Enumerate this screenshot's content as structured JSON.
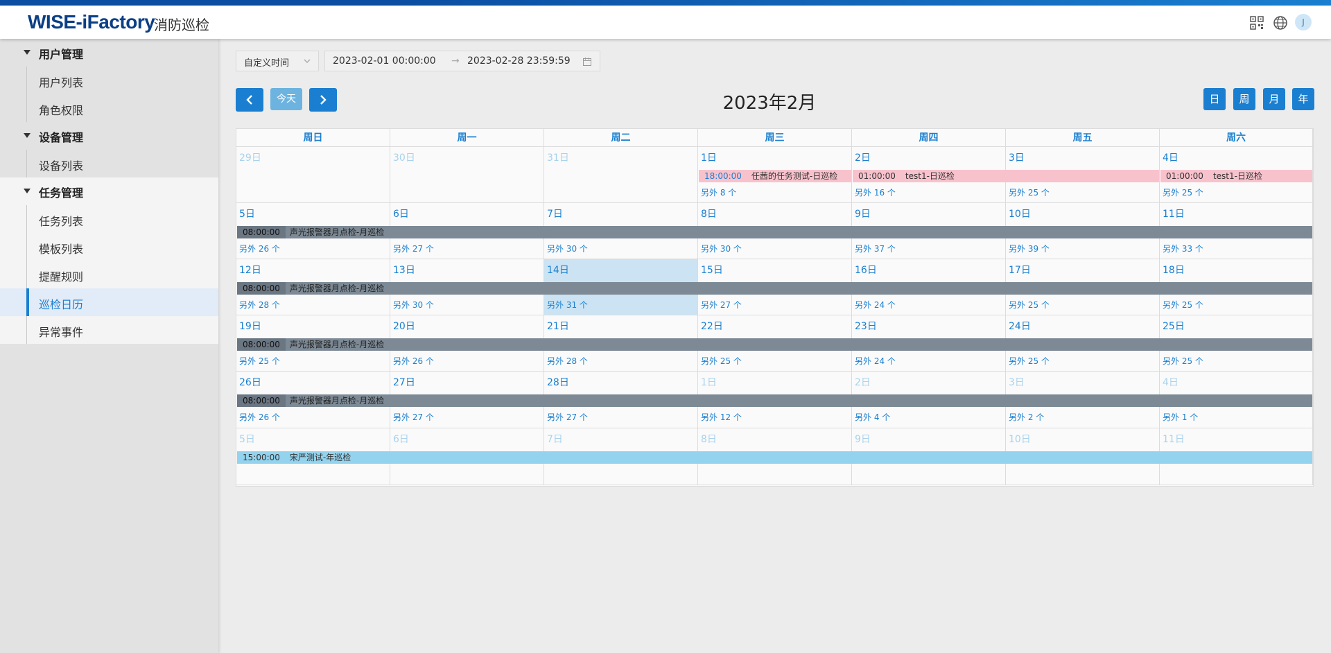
{
  "header": {
    "brand": "WISE-iFactory",
    "subtitle": "消防巡检",
    "avatar": "J",
    "icons": [
      "qrcode-icon",
      "globe-icon"
    ]
  },
  "sidebar": {
    "groups": [
      {
        "label": "用户管理",
        "items": [
          {
            "label": "用户列表"
          },
          {
            "label": "角色权限"
          }
        ]
      },
      {
        "label": "设备管理",
        "items": [
          {
            "label": "设备列表"
          }
        ]
      },
      {
        "label": "任务管理",
        "items": [
          {
            "label": "任务列表"
          },
          {
            "label": "模板列表"
          },
          {
            "label": "提醒规则"
          },
          {
            "label": "巡检日历",
            "active": true
          },
          {
            "label": "异常事件"
          }
        ]
      }
    ]
  },
  "filter": {
    "mode": "自定义时间",
    "start": "2023-02-01 00:00:00",
    "arrow": "→",
    "end": "2023-02-28 23:59:59"
  },
  "toolbar": {
    "today": "今天",
    "title": "2023年2月",
    "views": [
      "日",
      "周",
      "月",
      "年"
    ]
  },
  "calendar": {
    "weekdays": [
      "周日",
      "周一",
      "周二",
      "周三",
      "周四",
      "周五",
      "周六"
    ],
    "weeks": [
      {
        "days": [
          {
            "label": "29日",
            "other": true
          },
          {
            "label": "30日",
            "other": true
          },
          {
            "label": "31日",
            "other": true
          },
          {
            "label": "1日",
            "more": "另外 8 个"
          },
          {
            "label": "2日",
            "more": "另外 16 个"
          },
          {
            "label": "3日",
            "more": "另外 25 个"
          },
          {
            "label": "4日",
            "more": "另外 25 个"
          }
        ],
        "events": [
          {
            "time": "18:00:00",
            "name": "任茜的任务测试-日巡检",
            "start": 3,
            "span": 1,
            "color": "pinklight"
          },
          {
            "time": "01:00:00",
            "name": "test1-日巡检",
            "start": 4,
            "span": 2,
            "color": "pink"
          },
          {
            "time": "01:00:00",
            "name": "test1-日巡检",
            "start": 6,
            "span": 1,
            "color": "pink"
          }
        ]
      },
      {
        "days": [
          {
            "label": "5日",
            "more": "另外 26 个"
          },
          {
            "label": "6日",
            "more": "另外 27 个"
          },
          {
            "label": "7日",
            "more": "另外 30 个"
          },
          {
            "label": "8日",
            "more": "另外 30 个"
          },
          {
            "label": "9日",
            "more": "另外 37 个"
          },
          {
            "label": "10日",
            "more": "另外 39 个"
          },
          {
            "label": "11日",
            "more": "另外 33 个"
          }
        ],
        "events": [
          {
            "time": "08:00:00",
            "name": "声光报警器月点检-月巡检",
            "start": 0,
            "span": 7,
            "color": "gray"
          }
        ]
      },
      {
        "days": [
          {
            "label": "12日",
            "more": "另外 28 个"
          },
          {
            "label": "13日",
            "more": "另外 30 个"
          },
          {
            "label": "14日",
            "more": "另外 31 个",
            "today": true
          },
          {
            "label": "15日",
            "more": "另外 27 个"
          },
          {
            "label": "16日",
            "more": "另外 24 个"
          },
          {
            "label": "17日",
            "more": "另外 25 个"
          },
          {
            "label": "18日",
            "more": "另外 25 个"
          }
        ],
        "events": [
          {
            "time": "08:00:00",
            "name": "声光报警器月点检-月巡检",
            "start": 0,
            "span": 7,
            "color": "gray"
          }
        ]
      },
      {
        "days": [
          {
            "label": "19日",
            "more": "另外 25 个"
          },
          {
            "label": "20日",
            "more": "另外 26 个"
          },
          {
            "label": "21日",
            "more": "另外 28 个"
          },
          {
            "label": "22日",
            "more": "另外 25 个"
          },
          {
            "label": "23日",
            "more": "另外 24 个"
          },
          {
            "label": "24日",
            "more": "另外 25 个"
          },
          {
            "label": "25日",
            "more": "另外 25 个"
          }
        ],
        "events": [
          {
            "time": "08:00:00",
            "name": "声光报警器月点检-月巡检",
            "start": 0,
            "span": 7,
            "color": "gray"
          }
        ]
      },
      {
        "days": [
          {
            "label": "26日",
            "more": "另外 26 个"
          },
          {
            "label": "27日",
            "more": "另外 27 个"
          },
          {
            "label": "28日",
            "more": "另外 27 个"
          },
          {
            "label": "1日",
            "more": "另外 12 个",
            "other": true
          },
          {
            "label": "2日",
            "more": "另外 4 个",
            "other": true
          },
          {
            "label": "3日",
            "more": "另外 2 个",
            "other": true
          },
          {
            "label": "4日",
            "more": "另外 1 个",
            "other": true
          }
        ],
        "events": [
          {
            "time": "08:00:00",
            "name": "声光报警器月点检-月巡检",
            "start": 0,
            "span": 7,
            "color": "gray"
          }
        ]
      },
      {
        "days": [
          {
            "label": "5日",
            "other": true
          },
          {
            "label": "6日",
            "other": true
          },
          {
            "label": "7日",
            "other": true
          },
          {
            "label": "8日",
            "other": true
          },
          {
            "label": "9日",
            "other": true
          },
          {
            "label": "10日",
            "other": true
          },
          {
            "label": "11日",
            "other": true
          }
        ],
        "events": [
          {
            "time": "15:00:00",
            "name": "宋严测试-年巡检",
            "start": 0,
            "span": 7,
            "color": "blue"
          }
        ]
      }
    ]
  }
}
